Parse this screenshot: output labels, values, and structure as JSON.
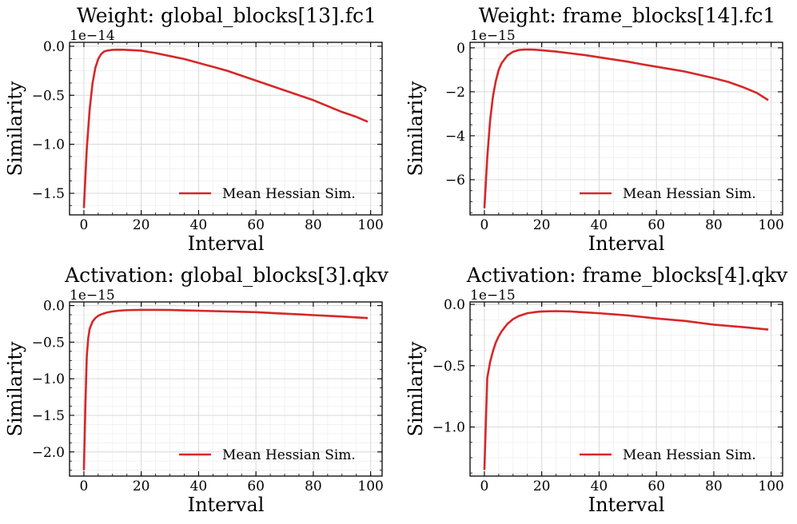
{
  "figure": {
    "line_color": "#d62728",
    "grid_major": "#d9d9d9",
    "grid_minor": "#efefef"
  },
  "chart_data": [
    {
      "type": "line",
      "title": "Weight: global_blocks[13].fc1",
      "xlabel": "Interval",
      "ylabel": "Similarity",
      "offset_text": "1e−14",
      "xlim": [
        -5,
        104
      ],
      "ylim": [
        -1.72,
        0.04
      ],
      "xticks": [
        0,
        20,
        40,
        60,
        80,
        100
      ],
      "xtick_labels": [
        "0",
        "20",
        "40",
        "60",
        "80",
        "100"
      ],
      "yticks": [
        0.0,
        -0.5,
        -1.0,
        -1.5
      ],
      "ytick_labels": [
        "0.0",
        "−0.5",
        "−1.0",
        "−1.5"
      ],
      "legend": "Mean Hessian Sim.",
      "legend_loc": "lower-right",
      "series": [
        {
          "name": "Mean Hessian Sim.",
          "x": [
            0,
            1,
            2,
            3,
            4,
            5,
            6,
            7,
            8,
            10,
            12,
            14,
            16,
            18,
            20,
            25,
            30,
            35,
            40,
            45,
            50,
            55,
            60,
            65,
            70,
            75,
            80,
            85,
            90,
            95,
            99
          ],
          "y": [
            -1.65,
            -1.05,
            -0.65,
            -0.38,
            -0.22,
            -0.13,
            -0.08,
            -0.055,
            -0.045,
            -0.037,
            -0.035,
            -0.036,
            -0.039,
            -0.042,
            -0.045,
            -0.07,
            -0.1,
            -0.13,
            -0.17,
            -0.21,
            -0.25,
            -0.3,
            -0.35,
            -0.4,
            -0.45,
            -0.5,
            -0.55,
            -0.61,
            -0.67,
            -0.72,
            -0.77
          ]
        }
      ]
    },
    {
      "type": "line",
      "title": "Weight: frame_blocks[14].fc1",
      "xlabel": "Interval",
      "ylabel": "Similarity",
      "offset_text": "1e−15",
      "xlim": [
        -5,
        104
      ],
      "ylim": [
        -7.6,
        0.25
      ],
      "xticks": [
        0,
        20,
        40,
        60,
        80,
        100
      ],
      "xtick_labels": [
        "0",
        "20",
        "40",
        "60",
        "80",
        "100"
      ],
      "yticks": [
        0,
        -2,
        -4,
        -6
      ],
      "ytick_labels": [
        "0",
        "−2",
        "−4",
        "−6"
      ],
      "legend": "Mean Hessian Sim.",
      "legend_loc": "lower-right",
      "series": [
        {
          "name": "Mean Hessian Sim.",
          "x": [
            0,
            1,
            2,
            3,
            4,
            5,
            6,
            8,
            10,
            12,
            14,
            16,
            18,
            20,
            25,
            30,
            35,
            40,
            45,
            50,
            55,
            60,
            65,
            70,
            75,
            80,
            85,
            90,
            95,
            99
          ],
          "y": [
            -7.3,
            -5.0,
            -3.3,
            -2.2,
            -1.5,
            -1.0,
            -0.7,
            -0.35,
            -0.18,
            -0.1,
            -0.08,
            -0.08,
            -0.09,
            -0.11,
            -0.17,
            -0.25,
            -0.33,
            -0.43,
            -0.53,
            -0.63,
            -0.75,
            -0.86,
            -0.97,
            -1.08,
            -1.23,
            -1.38,
            -1.55,
            -1.78,
            -2.05,
            -2.38
          ]
        }
      ]
    },
    {
      "type": "line",
      "title": "Activation: global_blocks[3].qkv",
      "xlabel": "Interval",
      "ylabel": "Similarity",
      "offset_text": "1e−15",
      "xlim": [
        -5,
        104
      ],
      "ylim": [
        -2.33,
        0.05
      ],
      "xticks": [
        0,
        20,
        40,
        60,
        80,
        100
      ],
      "xtick_labels": [
        "0",
        "20",
        "40",
        "60",
        "80",
        "100"
      ],
      "yticks": [
        0.0,
        -0.5,
        -1.0,
        -1.5,
        -2.0
      ],
      "ytick_labels": [
        "0.0",
        "−0.5",
        "−1.0",
        "−1.5",
        "−2.0"
      ],
      "legend": "Mean Hessian Sim.",
      "legend_loc": "lower-right",
      "series": [
        {
          "name": "Mean Hessian Sim.",
          "x": [
            0,
            0.5,
            1,
            1.5,
            2,
            3,
            4,
            5,
            6,
            8,
            10,
            12,
            15,
            20,
            25,
            30,
            35,
            40,
            50,
            60,
            70,
            80,
            90,
            99
          ],
          "y": [
            -2.25,
            -1.4,
            -0.7,
            -0.45,
            -0.32,
            -0.22,
            -0.17,
            -0.14,
            -0.12,
            -0.095,
            -0.08,
            -0.07,
            -0.062,
            -0.058,
            -0.058,
            -0.06,
            -0.065,
            -0.07,
            -0.08,
            -0.09,
            -0.11,
            -0.13,
            -0.15,
            -0.17
          ]
        }
      ]
    },
    {
      "type": "line",
      "title": "Activation: frame_blocks[4].qkv",
      "xlabel": "Interval",
      "ylabel": "Similarity",
      "offset_text": "1e−15",
      "xlim": [
        -5,
        104
      ],
      "ylim": [
        -1.4,
        0.02
      ],
      "xticks": [
        0,
        20,
        40,
        60,
        80,
        100
      ],
      "xtick_labels": [
        "0",
        "20",
        "40",
        "60",
        "80",
        "100"
      ],
      "yticks": [
        0.0,
        -0.5,
        -1.0
      ],
      "ytick_labels": [
        "0.0",
        "−0.5",
        "−1.0"
      ],
      "legend": "Mean Hessian Sim.",
      "legend_loc": "lower-right",
      "series": [
        {
          "name": "Mean Hessian Sim.",
          "x": [
            0,
            1,
            2,
            3,
            4,
            5,
            6,
            8,
            10,
            12,
            15,
            18,
            20,
            25,
            30,
            35,
            40,
            50,
            60,
            70,
            80,
            90,
            99
          ],
          "y": [
            -1.35,
            -0.6,
            -0.47,
            -0.38,
            -0.31,
            -0.26,
            -0.22,
            -0.16,
            -0.12,
            -0.095,
            -0.072,
            -0.062,
            -0.058,
            -0.055,
            -0.058,
            -0.065,
            -0.072,
            -0.09,
            -0.115,
            -0.135,
            -0.165,
            -0.185,
            -0.205
          ]
        }
      ]
    }
  ]
}
